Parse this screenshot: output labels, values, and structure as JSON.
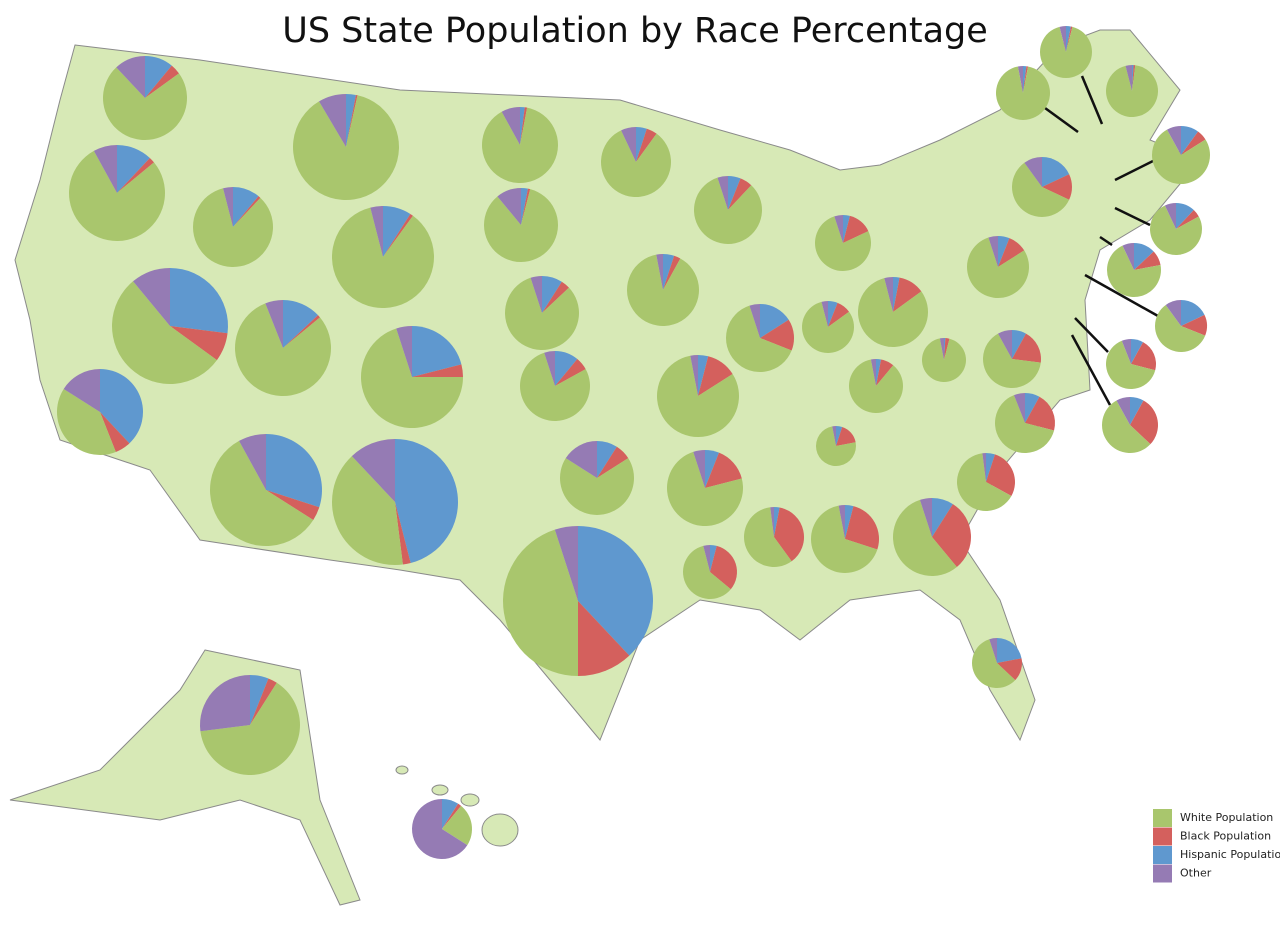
{
  "chart_data": {
    "type": "pie",
    "title": "US State Population by Race Percentage",
    "series": [
      {
        "name": "White Population",
        "color": "#a9c66d",
        "values": [
          73,
          78,
          40,
          84,
          54,
          88,
          86,
          80,
          70,
          58,
          40,
          89,
          85,
          82,
          78,
          68,
          45,
          83,
          89,
          81,
          74,
          60,
          83,
          64,
          77,
          81,
          81,
          86,
          75,
          58,
          67,
          56,
          58,
          65,
          65,
          65,
          93,
          79,
          58,
          94,
          92,
          94,
          76,
          76,
          71,
          59,
          65,
          55,
          64,
          23
        ]
      },
      {
        "name": "Black Population",
        "color": "#d4605d",
        "values": [
          4,
          2,
          6,
          1,
          8,
          0.5,
          1,
          1,
          4,
          4,
          2,
          1,
          1,
          4,
          6,
          7,
          12,
          5,
          3,
          12,
          15,
          32,
          6,
          15,
          14,
          9,
          12,
          8,
          17,
          37,
          26,
          30,
          15,
          28,
          21,
          19,
          3,
          10,
          14,
          1,
          1,
          1,
          6,
          5,
          9,
          13,
          21,
          29,
          3,
          2
        ]
      },
      {
        "name": "Hispanic Population",
        "color": "#5f98cf",
        "values": [
          11,
          12,
          38,
          11,
          27,
          3,
          9,
          13,
          21,
          30,
          46,
          2,
          3,
          9,
          11,
          9,
          38,
          5,
          5,
          4,
          6,
          4,
          6,
          16,
          4,
          6,
          3,
          3,
          5,
          3,
          4,
          9,
          22,
          5,
          8,
          8,
          1,
          6,
          18,
          2,
          3,
          1,
          10,
          12,
          13,
          18,
          8,
          8,
          6,
          9
        ]
      },
      {
        "name": "Other",
        "color": "#957bb4",
        "values": [
          12,
          8,
          16,
          4,
          11,
          8.5,
          4,
          6,
          5,
          8,
          12,
          8,
          11,
          5,
          5,
          16,
          5,
          7,
          3,
          3,
          5,
          4,
          5,
          5,
          5,
          4,
          4,
          3,
          3,
          2,
          3,
          5,
          5,
          2,
          6,
          8,
          3,
          5,
          10,
          3,
          4,
          4,
          8,
          7,
          7,
          10,
          6,
          8,
          27,
          66
        ]
      }
    ]
  }
}
